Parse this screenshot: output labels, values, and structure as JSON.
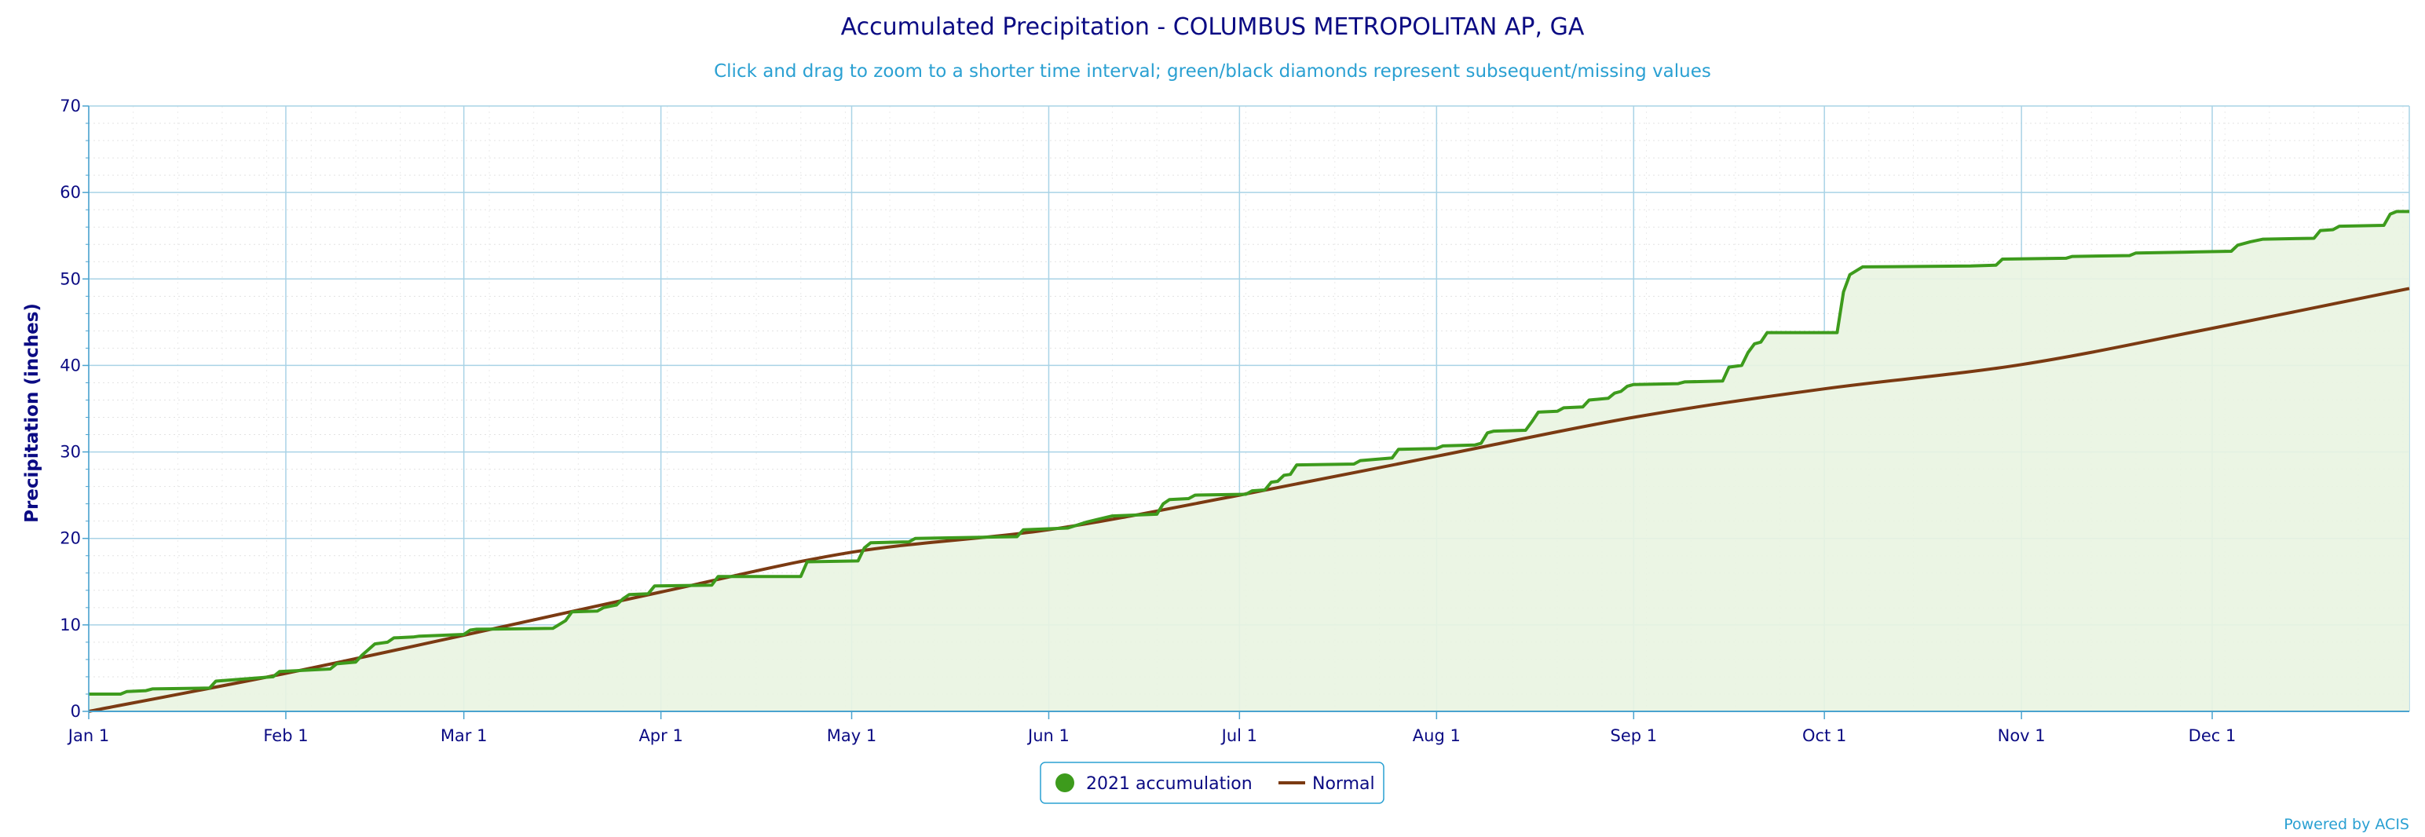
{
  "chart_data": {
    "type": "line",
    "title": "Accumulated Precipitation - COLUMBUS METROPOLITAN AP, GA",
    "subtitle": "Click and drag to zoom to a shorter time interval; green/black diamonds represent subsequent/missing values",
    "ylabel": "Precipitation (inches)",
    "ylim": [
      0,
      70
    ],
    "yticks": [
      0,
      10,
      20,
      30,
      40,
      50,
      60,
      70
    ],
    "xlim_days": [
      0,
      365
    ],
    "x_ticks": [
      {
        "label": "Jan 1",
        "day": 0
      },
      {
        "label": "Feb 1",
        "day": 31
      },
      {
        "label": "Mar 1",
        "day": 59
      },
      {
        "label": "Apr 1",
        "day": 90
      },
      {
        "label": "May 1",
        "day": 120
      },
      {
        "label": "Jun 1",
        "day": 151
      },
      {
        "label": "Jul 1",
        "day": 181
      },
      {
        "label": "Aug 1",
        "day": 212
      },
      {
        "label": "Sep 1",
        "day": 243
      },
      {
        "label": "Oct 1",
        "day": 273
      },
      {
        "label": "Nov 1",
        "day": 304
      },
      {
        "label": "Dec 1",
        "day": 334
      }
    ],
    "grid": true,
    "legend_position": "bottom-center",
    "series": [
      {
        "name": "2021 accumulation",
        "color": "#3d9b1c",
        "fill": "#e9f4e1",
        "points": [
          [
            0,
            2.0
          ],
          [
            5,
            2.0
          ],
          [
            6,
            2.3
          ],
          [
            9,
            2.4
          ],
          [
            10,
            2.6
          ],
          [
            19,
            2.7
          ],
          [
            20,
            3.5
          ],
          [
            29,
            4.0
          ],
          [
            30,
            4.6
          ],
          [
            38,
            4.9
          ],
          [
            39,
            5.5
          ],
          [
            42,
            5.7
          ],
          [
            43,
            6.5
          ],
          [
            45,
            7.8
          ],
          [
            47,
            8.0
          ],
          [
            48,
            8.5
          ],
          [
            51,
            8.6
          ],
          [
            52,
            8.7
          ],
          [
            59,
            8.9
          ],
          [
            60,
            9.4
          ],
          [
            61,
            9.5
          ],
          [
            73,
            9.6
          ],
          [
            75,
            10.5
          ],
          [
            76,
            11.5
          ],
          [
            80,
            11.6
          ],
          [
            81,
            12.0
          ],
          [
            83,
            12.3
          ],
          [
            84,
            13.0
          ],
          [
            85,
            13.5
          ],
          [
            88,
            13.6
          ],
          [
            89,
            14.5
          ],
          [
            98,
            14.6
          ],
          [
            99,
            15.6
          ],
          [
            112,
            15.6
          ],
          [
            113,
            17.3
          ],
          [
            121,
            17.4
          ],
          [
            122,
            18.9
          ],
          [
            123,
            19.5
          ],
          [
            129,
            19.6
          ],
          [
            130,
            20.0
          ],
          [
            146,
            20.2
          ],
          [
            147,
            21.0
          ],
          [
            154,
            21.2
          ],
          [
            157,
            21.9
          ],
          [
            161,
            22.6
          ],
          [
            168,
            22.8
          ],
          [
            169,
            24.0
          ],
          [
            170,
            24.5
          ],
          [
            173,
            24.6
          ],
          [
            174,
            25.0
          ],
          [
            182,
            25.1
          ],
          [
            183,
            25.5
          ],
          [
            185,
            25.6
          ],
          [
            186,
            26.5
          ],
          [
            187,
            26.6
          ],
          [
            188,
            27.3
          ],
          [
            189,
            27.4
          ],
          [
            190,
            28.5
          ],
          [
            199,
            28.6
          ],
          [
            200,
            29.0
          ],
          [
            205,
            29.3
          ],
          [
            206,
            30.3
          ],
          [
            212,
            30.4
          ],
          [
            213,
            30.7
          ],
          [
            218,
            30.8
          ],
          [
            219,
            31.0
          ],
          [
            220,
            32.2
          ],
          [
            221,
            32.4
          ],
          [
            226,
            32.5
          ],
          [
            227,
            33.5
          ],
          [
            228,
            34.6
          ],
          [
            231,
            34.7
          ],
          [
            232,
            35.1
          ],
          [
            235,
            35.2
          ],
          [
            236,
            36.0
          ],
          [
            239,
            36.2
          ],
          [
            240,
            36.8
          ],
          [
            241,
            37.0
          ],
          [
            242,
            37.6
          ],
          [
            243,
            37.8
          ],
          [
            250,
            37.9
          ],
          [
            251,
            38.1
          ],
          [
            257,
            38.2
          ],
          [
            258,
            39.8
          ],
          [
            260,
            40.0
          ],
          [
            261,
            41.5
          ],
          [
            262,
            42.5
          ],
          [
            263,
            42.7
          ],
          [
            264,
            43.8
          ],
          [
            275,
            43.8
          ],
          [
            276,
            48.5
          ],
          [
            277,
            50.5
          ],
          [
            279,
            51.4
          ],
          [
            296,
            51.5
          ],
          [
            300,
            51.6
          ],
          [
            301,
            52.3
          ],
          [
            311,
            52.4
          ],
          [
            312,
            52.6
          ],
          [
            321,
            52.7
          ],
          [
            322,
            53.0
          ],
          [
            330,
            53.1
          ],
          [
            337,
            53.2
          ],
          [
            338,
            53.9
          ],
          [
            340,
            54.3
          ],
          [
            342,
            54.6
          ],
          [
            350,
            54.7
          ],
          [
            351,
            55.6
          ],
          [
            353,
            55.7
          ],
          [
            354,
            56.1
          ],
          [
            361,
            56.2
          ],
          [
            362,
            57.5
          ],
          [
            363,
            57.8
          ],
          [
            365,
            57.8
          ]
        ]
      },
      {
        "name": "Normal",
        "color": "#7b3a12",
        "points": [
          [
            0,
            0.0
          ],
          [
            31,
            4.4
          ],
          [
            59,
            8.8
          ],
          [
            90,
            13.8
          ],
          [
            120,
            18.4
          ],
          [
            151,
            21.0
          ],
          [
            181,
            25.0
          ],
          [
            212,
            29.5
          ],
          [
            243,
            34.0
          ],
          [
            273,
            37.3
          ],
          [
            304,
            40.1
          ],
          [
            334,
            44.3
          ],
          [
            365,
            48.9
          ]
        ]
      }
    ],
    "legend": [
      {
        "label": "2021 accumulation",
        "symbol": "circle",
        "color": "#3d9b1c"
      },
      {
        "label": "Normal",
        "symbol": "line",
        "color": "#7b3a12"
      }
    ],
    "credit": "Powered by ACIS"
  }
}
